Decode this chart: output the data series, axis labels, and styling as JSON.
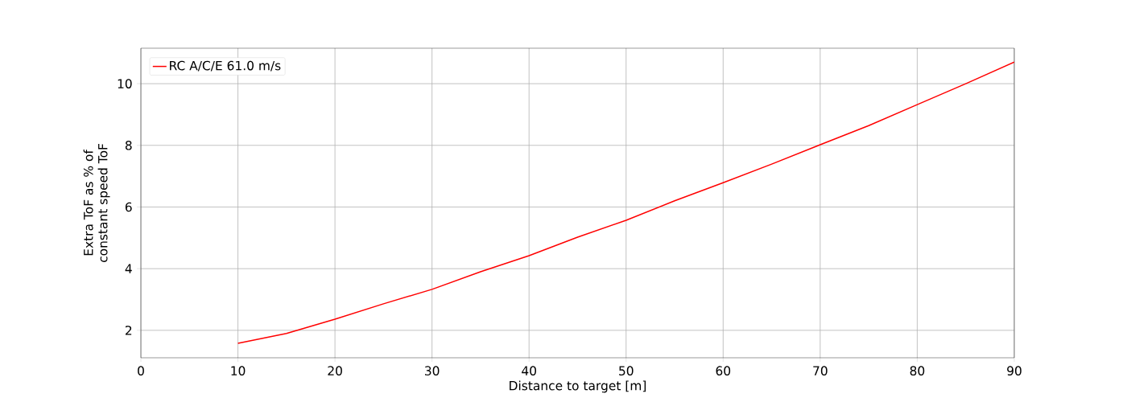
{
  "chart_data": {
    "type": "line",
    "xlabel": "Distance to target [m]",
    "ylabel": "Extra ToF as % of constant speed ToF",
    "x": [
      10,
      15,
      20,
      25,
      30,
      35,
      40,
      45,
      50,
      55,
      60,
      65,
      70,
      75,
      80,
      85,
      90
    ],
    "series": [
      {
        "name": "RC A/C/E 61.0 m/s",
        "color": "#ff0000",
        "values": [
          1.58,
          1.9,
          2.36,
          2.86,
          3.33,
          3.9,
          4.42,
          5.02,
          5.57,
          6.2,
          6.79,
          7.39,
          8.02,
          8.64,
          9.32,
          10.0,
          10.7
        ]
      }
    ],
    "xlim": [
      0,
      90
    ],
    "ylim": [
      1.11,
      11.15
    ],
    "xticks": [
      0,
      10,
      20,
      30,
      40,
      50,
      60,
      70,
      80,
      90
    ],
    "yticks": [
      2,
      4,
      6,
      8,
      10
    ],
    "grid": true,
    "legend": "top left",
    "marker": "none",
    "line_style": "solid"
  }
}
